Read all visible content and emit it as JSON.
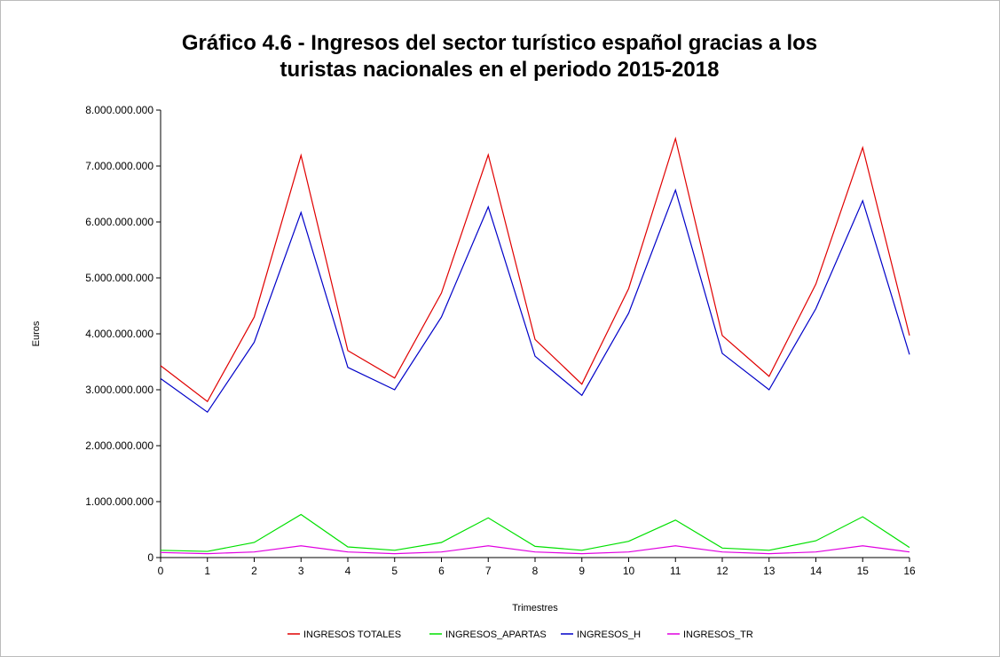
{
  "chart_data": {
    "type": "line",
    "title": [
      "Gráfico 4.6 - Ingresos del sector turístico español gracias a los",
      "turistas nacionales en el periodo 2015-2018"
    ],
    "x_label": "Trimestres",
    "y_label": "Euros",
    "x": [
      0,
      1,
      2,
      3,
      4,
      5,
      6,
      7,
      8,
      9,
      10,
      11,
      12,
      13,
      14,
      15,
      16
    ],
    "xlim": [
      0,
      16
    ],
    "xticks": [
      0,
      1,
      2,
      3,
      4,
      5,
      6,
      7,
      8,
      9,
      10,
      11,
      12,
      13,
      14,
      15,
      16
    ],
    "ylim": [
      0,
      8000000000
    ],
    "yticks": [
      0,
      {
        "value": 1000000000,
        "label": "1.000.000.000"
      },
      {
        "value": 2000000000,
        "label": "2.000.000.000"
      },
      {
        "value": 3000000000,
        "label": "3.000.000.000"
      },
      {
        "value": 4000000000,
        "label": "4.000.000.000"
      },
      {
        "value": 5000000000,
        "label": "5.000.000.000"
      },
      {
        "value": 6000000000,
        "label": "6.000.000.000"
      },
      {
        "value": 7000000000,
        "label": "7.000.000.000"
      },
      {
        "value": 8000000000,
        "label": "8.000.000.000"
      }
    ],
    "legend": "bottom",
    "series": [
      {
        "name": "INGRESOS TOTALES",
        "color": "#e00000",
        "values": [
          3430000000,
          2790000000,
          4300000000,
          7190000000,
          3700000000,
          3210000000,
          4730000000,
          7200000000,
          3900000000,
          3100000000,
          4810000000,
          7490000000,
          3970000000,
          3240000000,
          4890000000,
          7330000000,
          3970000000
        ]
      },
      {
        "name": "INGRESOS_APARTAS",
        "color": "#00e000",
        "values": [
          130000000,
          110000000,
          270000000,
          770000000,
          190000000,
          130000000,
          270000000,
          710000000,
          200000000,
          130000000,
          290000000,
          670000000,
          170000000,
          130000000,
          300000000,
          730000000,
          180000000
        ]
      },
      {
        "name": "INGRESOS_H",
        "color": "#0000c8",
        "values": [
          3200000000,
          2600000000,
          3850000000,
          6170000000,
          3400000000,
          3000000000,
          4300000000,
          6270000000,
          3600000000,
          2900000000,
          4370000000,
          6570000000,
          3650000000,
          3000000000,
          4450000000,
          6380000000,
          3630000000
        ]
      },
      {
        "name": "INGRESOS_TR",
        "color": "#e000e0",
        "values": [
          90000000,
          70000000,
          100000000,
          210000000,
          100000000,
          70000000,
          100000000,
          210000000,
          100000000,
          70000000,
          100000000,
          210000000,
          100000000,
          70000000,
          100000000,
          210000000,
          100000000
        ]
      }
    ]
  }
}
